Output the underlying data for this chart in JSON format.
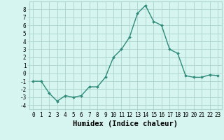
{
  "x": [
    0,
    1,
    2,
    3,
    4,
    5,
    6,
    7,
    8,
    9,
    10,
    11,
    12,
    13,
    14,
    15,
    16,
    17,
    18,
    19,
    20,
    21,
    22,
    23
  ],
  "y": [
    -1,
    -1,
    -2.5,
    -3.5,
    -2.8,
    -3.0,
    -2.8,
    -1.7,
    -1.7,
    -0.5,
    2.0,
    3.0,
    4.5,
    7.5,
    8.5,
    6.5,
    6.0,
    3.0,
    2.5,
    -0.3,
    -0.5,
    -0.5,
    -0.2,
    -0.3
  ],
  "line_color": "#2e8b7a",
  "marker": "D",
  "marker_size": 2.0,
  "line_width": 1.0,
  "bg_color": "#d6f5f0",
  "grid_color": "#b0d8d0",
  "xlabel": "Humidex (Indice chaleur)",
  "ylim": [
    -4.5,
    9.0
  ],
  "xlim": [
    -0.5,
    23.5
  ],
  "yticks": [
    -4,
    -3,
    -2,
    -1,
    0,
    1,
    2,
    3,
    4,
    5,
    6,
    7,
    8
  ],
  "xticks": [
    0,
    1,
    2,
    3,
    4,
    5,
    6,
    7,
    8,
    9,
    10,
    11,
    12,
    13,
    14,
    15,
    16,
    17,
    18,
    19,
    20,
    21,
    22,
    23
  ],
  "tick_fontsize": 5.5,
  "xlabel_fontsize": 7.5
}
